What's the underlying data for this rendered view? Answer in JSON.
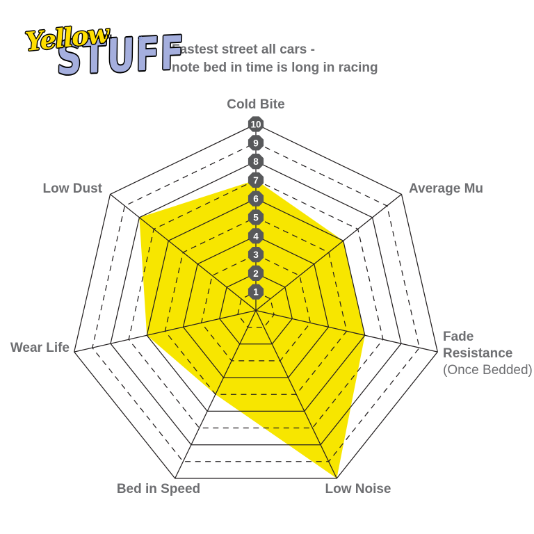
{
  "header": {
    "logo": {
      "word1": "Yellow",
      "tm": "TM",
      "word2": "STUFF",
      "registered": "®"
    },
    "subtitle_line1": "Fastest street all cars -",
    "subtitle_line2": "note bed in time is long in racing"
  },
  "chart_data": {
    "type": "radar",
    "title": "Fastest street all cars - note bed in time is long in racing",
    "axes": [
      {
        "label": "Cold Bite",
        "value": 7
      },
      {
        "label": "Average Mu",
        "value": 6
      },
      {
        "label": "Fade Resistance",
        "sublabel": "(Once Bedded)",
        "value": 6
      },
      {
        "label": "Low Noise",
        "value": 10
      },
      {
        "label": "Bed in Speed",
        "value": 5
      },
      {
        "label": "Wear Life",
        "value": 6
      },
      {
        "label": "Low Dust",
        "value": 8
      }
    ],
    "scale": {
      "min": 0,
      "max": 10,
      "tick_labels": [
        "1",
        "2",
        "3",
        "4",
        "5",
        "6",
        "7",
        "8",
        "9",
        "10"
      ]
    },
    "layout": {
      "start_axis": "top",
      "direction": "clockwise",
      "grid": "heptagonal rings, even rings solid, odd rings dashed",
      "tick_badges": "octagons on top spoke",
      "legend": "none"
    },
    "colors": {
      "fill_yellow": "#F7E600",
      "grid": "#231F20",
      "badge_bg": "#58595B",
      "badge_text": "#FFFFFF",
      "label_gray": "#6D6E71",
      "logo_yellow": "#FFDE00",
      "logo_periwinkle": "#A5AFDE"
    }
  }
}
